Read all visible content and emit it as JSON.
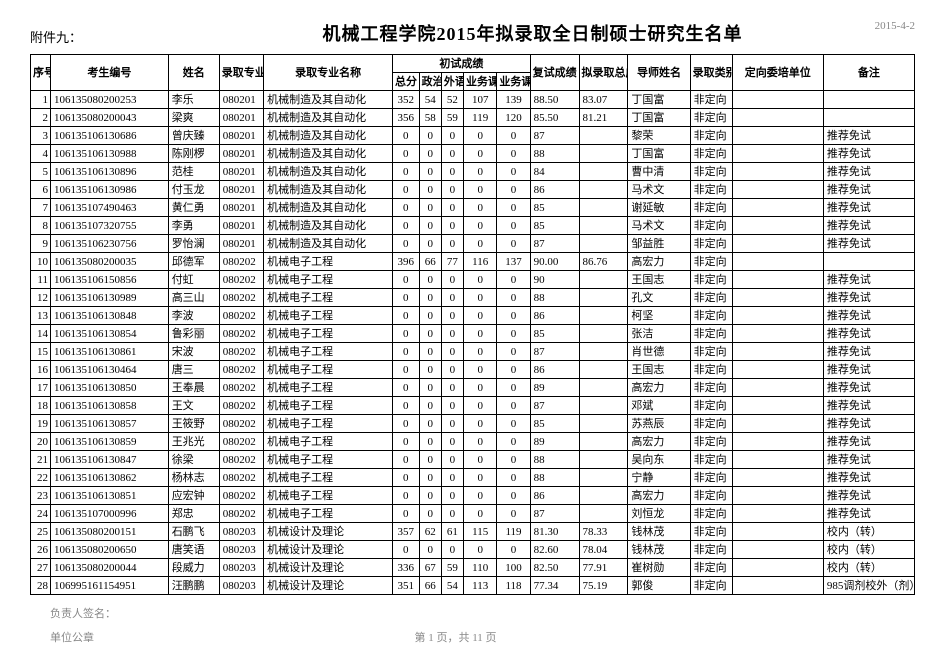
{
  "header": {
    "attachment": "附件九：",
    "title": "机械工程学院2015年拟录取全日制硕士研究生名单",
    "date": "2015-4-2"
  },
  "columns": {
    "seq": "序号",
    "exam_id": "考生编号",
    "name": "姓名",
    "major_code": "录取专业代码",
    "major_name": "录取专业名称",
    "prelim_group": "初试成绩",
    "total": "总分",
    "politics": "政治",
    "foreign": "外语",
    "sub1": "业务课一",
    "sub2": "业务课二",
    "retest": "复试成绩",
    "final": "拟录取总成绩",
    "tutor": "导师姓名",
    "adm_type": "录取类别",
    "assign_unit": "定向委培单位",
    "remark": "备注"
  },
  "rows": [
    {
      "seq": "1",
      "id": "106135080200253",
      "name": "李乐",
      "mcode": "080201",
      "mname": "机械制造及其自动化",
      "s1": "352",
      "s2": "54",
      "s3": "52",
      "s4": "107",
      "s5": "139",
      "retest": "88.50",
      "final": "83.07",
      "tutor": "丁国富",
      "adm": "非定向",
      "unit": "",
      "remark": ""
    },
    {
      "seq": "2",
      "id": "106135080200043",
      "name": "梁爽",
      "mcode": "080201",
      "mname": "机械制造及其自动化",
      "s1": "356",
      "s2": "58",
      "s3": "59",
      "s4": "119",
      "s5": "120",
      "retest": "85.50",
      "final": "81.21",
      "tutor": "丁国富",
      "adm": "非定向",
      "unit": "",
      "remark": ""
    },
    {
      "seq": "3",
      "id": "106135106130686",
      "name": "曾庆臻",
      "mcode": "080201",
      "mname": "机械制造及其自动化",
      "s1": "0",
      "s2": "0",
      "s3": "0",
      "s4": "0",
      "s5": "0",
      "retest": "87",
      "final": "",
      "tutor": "黎荣",
      "adm": "非定向",
      "unit": "",
      "remark": "推荐免试"
    },
    {
      "seq": "4",
      "id": "106135106130988",
      "name": "陈刚椤",
      "mcode": "080201",
      "mname": "机械制造及其自动化",
      "s1": "0",
      "s2": "0",
      "s3": "0",
      "s4": "0",
      "s5": "0",
      "retest": "88",
      "final": "",
      "tutor": "丁国富",
      "adm": "非定向",
      "unit": "",
      "remark": "推荐免试"
    },
    {
      "seq": "5",
      "id": "106135106130896",
      "name": "范桂",
      "mcode": "080201",
      "mname": "机械制造及其自动化",
      "s1": "0",
      "s2": "0",
      "s3": "0",
      "s4": "0",
      "s5": "0",
      "retest": "84",
      "final": "",
      "tutor": "曹中清",
      "adm": "非定向",
      "unit": "",
      "remark": "推荐免试"
    },
    {
      "seq": "6",
      "id": "106135106130986",
      "name": "付玉龙",
      "mcode": "080201",
      "mname": "机械制造及其自动化",
      "s1": "0",
      "s2": "0",
      "s3": "0",
      "s4": "0",
      "s5": "0",
      "retest": "86",
      "final": "",
      "tutor": "马术文",
      "adm": "非定向",
      "unit": "",
      "remark": "推荐免试"
    },
    {
      "seq": "7",
      "id": "106135107490463",
      "name": "黄仁勇",
      "mcode": "080201",
      "mname": "机械制造及其自动化",
      "s1": "0",
      "s2": "0",
      "s3": "0",
      "s4": "0",
      "s5": "0",
      "retest": "85",
      "final": "",
      "tutor": "谢延敏",
      "adm": "非定向",
      "unit": "",
      "remark": "推荐免试"
    },
    {
      "seq": "8",
      "id": "106135107320755",
      "name": "李勇",
      "mcode": "080201",
      "mname": "机械制造及其自动化",
      "s1": "0",
      "s2": "0",
      "s3": "0",
      "s4": "0",
      "s5": "0",
      "retest": "85",
      "final": "",
      "tutor": "马术文",
      "adm": "非定向",
      "unit": "",
      "remark": "推荐免试"
    },
    {
      "seq": "9",
      "id": "106135106230756",
      "name": "罗怡澜",
      "mcode": "080201",
      "mname": "机械制造及其自动化",
      "s1": "0",
      "s2": "0",
      "s3": "0",
      "s4": "0",
      "s5": "0",
      "retest": "87",
      "final": "",
      "tutor": "邹益胜",
      "adm": "非定向",
      "unit": "",
      "remark": "推荐免试"
    },
    {
      "seq": "10",
      "id": "106135080200035",
      "name": "邱德军",
      "mcode": "080202",
      "mname": "机械电子工程",
      "s1": "396",
      "s2": "66",
      "s3": "77",
      "s4": "116",
      "s5": "137",
      "retest": "90.00",
      "final": "86.76",
      "tutor": "高宏力",
      "adm": "非定向",
      "unit": "",
      "remark": ""
    },
    {
      "seq": "11",
      "id": "106135106150856",
      "name": "付虹",
      "mcode": "080202",
      "mname": "机械电子工程",
      "s1": "0",
      "s2": "0",
      "s3": "0",
      "s4": "0",
      "s5": "0",
      "retest": "90",
      "final": "",
      "tutor": "王国志",
      "adm": "非定向",
      "unit": "",
      "remark": "推荐免试"
    },
    {
      "seq": "12",
      "id": "106135106130989",
      "name": "高三山",
      "mcode": "080202",
      "mname": "机械电子工程",
      "s1": "0",
      "s2": "0",
      "s3": "0",
      "s4": "0",
      "s5": "0",
      "retest": "88",
      "final": "",
      "tutor": "孔文",
      "adm": "非定向",
      "unit": "",
      "remark": "推荐免试"
    },
    {
      "seq": "13",
      "id": "106135106130848",
      "name": "李波",
      "mcode": "080202",
      "mname": "机械电子工程",
      "s1": "0",
      "s2": "0",
      "s3": "0",
      "s4": "0",
      "s5": "0",
      "retest": "86",
      "final": "",
      "tutor": "柯坚",
      "adm": "非定向",
      "unit": "",
      "remark": "推荐免试"
    },
    {
      "seq": "14",
      "id": "106135106130854",
      "name": "鲁彩丽",
      "mcode": "080202",
      "mname": "机械电子工程",
      "s1": "0",
      "s2": "0",
      "s3": "0",
      "s4": "0",
      "s5": "0",
      "retest": "85",
      "final": "",
      "tutor": "张洁",
      "adm": "非定向",
      "unit": "",
      "remark": "推荐免试"
    },
    {
      "seq": "15",
      "id": "106135106130861",
      "name": "宋波",
      "mcode": "080202",
      "mname": "机械电子工程",
      "s1": "0",
      "s2": "0",
      "s3": "0",
      "s4": "0",
      "s5": "0",
      "retest": "87",
      "final": "",
      "tutor": "肖世德",
      "adm": "非定向",
      "unit": "",
      "remark": "推荐免试"
    },
    {
      "seq": "16",
      "id": "106135106130464",
      "name": "唐三",
      "mcode": "080202",
      "mname": "机械电子工程",
      "s1": "0",
      "s2": "0",
      "s3": "0",
      "s4": "0",
      "s5": "0",
      "retest": "86",
      "final": "",
      "tutor": "王国志",
      "adm": "非定向",
      "unit": "",
      "remark": "推荐免试"
    },
    {
      "seq": "17",
      "id": "106135106130850",
      "name": "王奉晨",
      "mcode": "080202",
      "mname": "机械电子工程",
      "s1": "0",
      "s2": "0",
      "s3": "0",
      "s4": "0",
      "s5": "0",
      "retest": "89",
      "final": "",
      "tutor": "高宏力",
      "adm": "非定向",
      "unit": "",
      "remark": "推荐免试"
    },
    {
      "seq": "18",
      "id": "106135106130858",
      "name": "王文",
      "mcode": "080202",
      "mname": "机械电子工程",
      "s1": "0",
      "s2": "0",
      "s3": "0",
      "s4": "0",
      "s5": "0",
      "retest": "87",
      "final": "",
      "tutor": "邓斌",
      "adm": "非定向",
      "unit": "",
      "remark": "推荐免试"
    },
    {
      "seq": "19",
      "id": "106135106130857",
      "name": "王筱野",
      "mcode": "080202",
      "mname": "机械电子工程",
      "s1": "0",
      "s2": "0",
      "s3": "0",
      "s4": "0",
      "s5": "0",
      "retest": "85",
      "final": "",
      "tutor": "苏燕辰",
      "adm": "非定向",
      "unit": "",
      "remark": "推荐免试"
    },
    {
      "seq": "20",
      "id": "106135106130859",
      "name": "王兆光",
      "mcode": "080202",
      "mname": "机械电子工程",
      "s1": "0",
      "s2": "0",
      "s3": "0",
      "s4": "0",
      "s5": "0",
      "retest": "89",
      "final": "",
      "tutor": "高宏力",
      "adm": "非定向",
      "unit": "",
      "remark": "推荐免试"
    },
    {
      "seq": "21",
      "id": "106135106130847",
      "name": "徐梁",
      "mcode": "080202",
      "mname": "机械电子工程",
      "s1": "0",
      "s2": "0",
      "s3": "0",
      "s4": "0",
      "s5": "0",
      "retest": "88",
      "final": "",
      "tutor": "吴向东",
      "adm": "非定向",
      "unit": "",
      "remark": "推荐免试"
    },
    {
      "seq": "22",
      "id": "106135106130862",
      "name": "杨林志",
      "mcode": "080202",
      "mname": "机械电子工程",
      "s1": "0",
      "s2": "0",
      "s3": "0",
      "s4": "0",
      "s5": "0",
      "retest": "88",
      "final": "",
      "tutor": "宁静",
      "adm": "非定向",
      "unit": "",
      "remark": "推荐免试"
    },
    {
      "seq": "23",
      "id": "106135106130851",
      "name": "应宏钟",
      "mcode": "080202",
      "mname": "机械电子工程",
      "s1": "0",
      "s2": "0",
      "s3": "0",
      "s4": "0",
      "s5": "0",
      "retest": "86",
      "final": "",
      "tutor": "高宏力",
      "adm": "非定向",
      "unit": "",
      "remark": "推荐免试"
    },
    {
      "seq": "24",
      "id": "106135107000996",
      "name": "郑忠",
      "mcode": "080202",
      "mname": "机械电子工程",
      "s1": "0",
      "s2": "0",
      "s3": "0",
      "s4": "0",
      "s5": "0",
      "retest": "87",
      "final": "",
      "tutor": "刘恒龙",
      "adm": "非定向",
      "unit": "",
      "remark": "推荐免试"
    },
    {
      "seq": "25",
      "id": "106135080200151",
      "name": "石鹏飞",
      "mcode": "080203",
      "mname": "机械设计及理论",
      "s1": "357",
      "s2": "62",
      "s3": "61",
      "s4": "115",
      "s5": "119",
      "retest": "81.30",
      "final": "78.33",
      "tutor": "钱林茂",
      "adm": "非定向",
      "unit": "",
      "remark": "校内（转）"
    },
    {
      "seq": "26",
      "id": "106135080200650",
      "name": "唐笑语",
      "mcode": "080203",
      "mname": "机械设计及理论",
      "s1": "0",
      "s2": "0",
      "s3": "0",
      "s4": "0",
      "s5": "0",
      "retest": "82.60",
      "final": "78.04",
      "tutor": "钱林茂",
      "adm": "非定向",
      "unit": "",
      "remark": "校内（转）"
    },
    {
      "seq": "27",
      "id": "106135080200044",
      "name": "段威力",
      "mcode": "080203",
      "mname": "机械设计及理论",
      "s1": "336",
      "s2": "67",
      "s3": "59",
      "s4": "110",
      "s5": "100",
      "retest": "82.50",
      "final": "77.91",
      "tutor": "崔树勋",
      "adm": "非定向",
      "unit": "",
      "remark": "校内（转）"
    },
    {
      "seq": "28",
      "id": "106995161154951",
      "name": "汪鹏鹏",
      "mcode": "080203",
      "mname": "机械设计及理论",
      "s1": "351",
      "s2": "66",
      "s3": "54",
      "s4": "113",
      "s5": "118",
      "retest": "77.34",
      "final": "75.19",
      "tutor": "郭俊",
      "adm": "非定向",
      "unit": "",
      "remark": "985调剂校外（剂）"
    }
  ],
  "footer": {
    "signer": "负责人签名：",
    "seal": "单位公章",
    "pager": "第 1 页，共 11 页"
  }
}
